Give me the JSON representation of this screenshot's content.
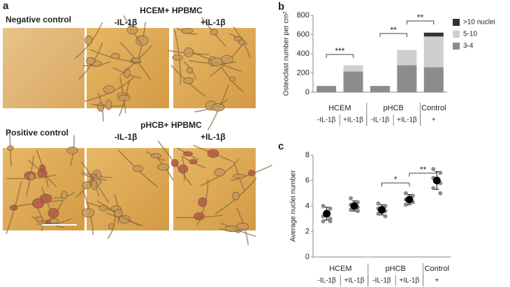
{
  "panel_a": {
    "label": "a",
    "rows": [
      {
        "left_title": "Negative control",
        "group_title": "HCEM+ HPBMC",
        "columns": [
          "-IL-1β",
          "+IL-1β"
        ]
      },
      {
        "left_title": "Positive control",
        "group_title": "pHCB+ HPBMC",
        "columns": [
          "-IL-1β",
          "+IL-1β"
        ]
      }
    ]
  },
  "chart_data": [
    {
      "type": "bar",
      "stacked": true,
      "label": "b",
      "y_label": "Osteoclast number per cm²",
      "categories": [
        "-IL-1β",
        "+IL-1β",
        "-IL-1β",
        "+IL-1β",
        "+"
      ],
      "groups": [
        "HCEM",
        "pHCB",
        "Control"
      ],
      "series": [
        {
          "name": "3-4",
          "color": "#8c8c8c",
          "values": [
            65,
            215,
            65,
            280,
            260
          ]
        },
        {
          "name": "5-10",
          "color": "#cfcfcf",
          "values": [
            0,
            65,
            0,
            160,
            320
          ]
        },
        {
          "name": ">10 nuclei",
          "color": "#333333",
          "values": [
            0,
            0,
            0,
            0,
            40
          ]
        }
      ],
      "ylim": [
        0,
        800
      ],
      "yticks": [
        0,
        200,
        400,
        600,
        800
      ],
      "legend": "right",
      "annotations": [
        "***",
        "**",
        "**"
      ]
    },
    {
      "type": "scatter",
      "label": "c",
      "y_label": "Average nuclei number",
      "categories": [
        "-IL-1β",
        "+IL-1β",
        "-IL-1β",
        "+IL-1β",
        "+"
      ],
      "groups": [
        "HCEM",
        "pHCB",
        "Control"
      ],
      "values": [
        3.4,
        4.0,
        3.7,
        4.5,
        6.0
      ],
      "errors": [
        0.5,
        0.4,
        0.4,
        0.4,
        0.7
      ],
      "color": "#000000",
      "points_color": "#8c8c8c",
      "points": [
        [
          4.0,
          3.8,
          3.2,
          3.0,
          2.8,
          2.8
        ],
        [
          4.6,
          4.3,
          4.1,
          3.9,
          3.7,
          3.6
        ],
        [
          4.2,
          4.0,
          3.8,
          3.6,
          3.4,
          3.2
        ],
        [
          5.0,
          4.8,
          4.5,
          4.3,
          4.1
        ],
        [
          6.9,
          6.6,
          6.2,
          5.8,
          5.4,
          5.0
        ]
      ],
      "ylim": [
        0,
        8
      ],
      "yticks": [
        0,
        2,
        4,
        6,
        8
      ],
      "annotations": [
        "*",
        "**"
      ]
    }
  ]
}
